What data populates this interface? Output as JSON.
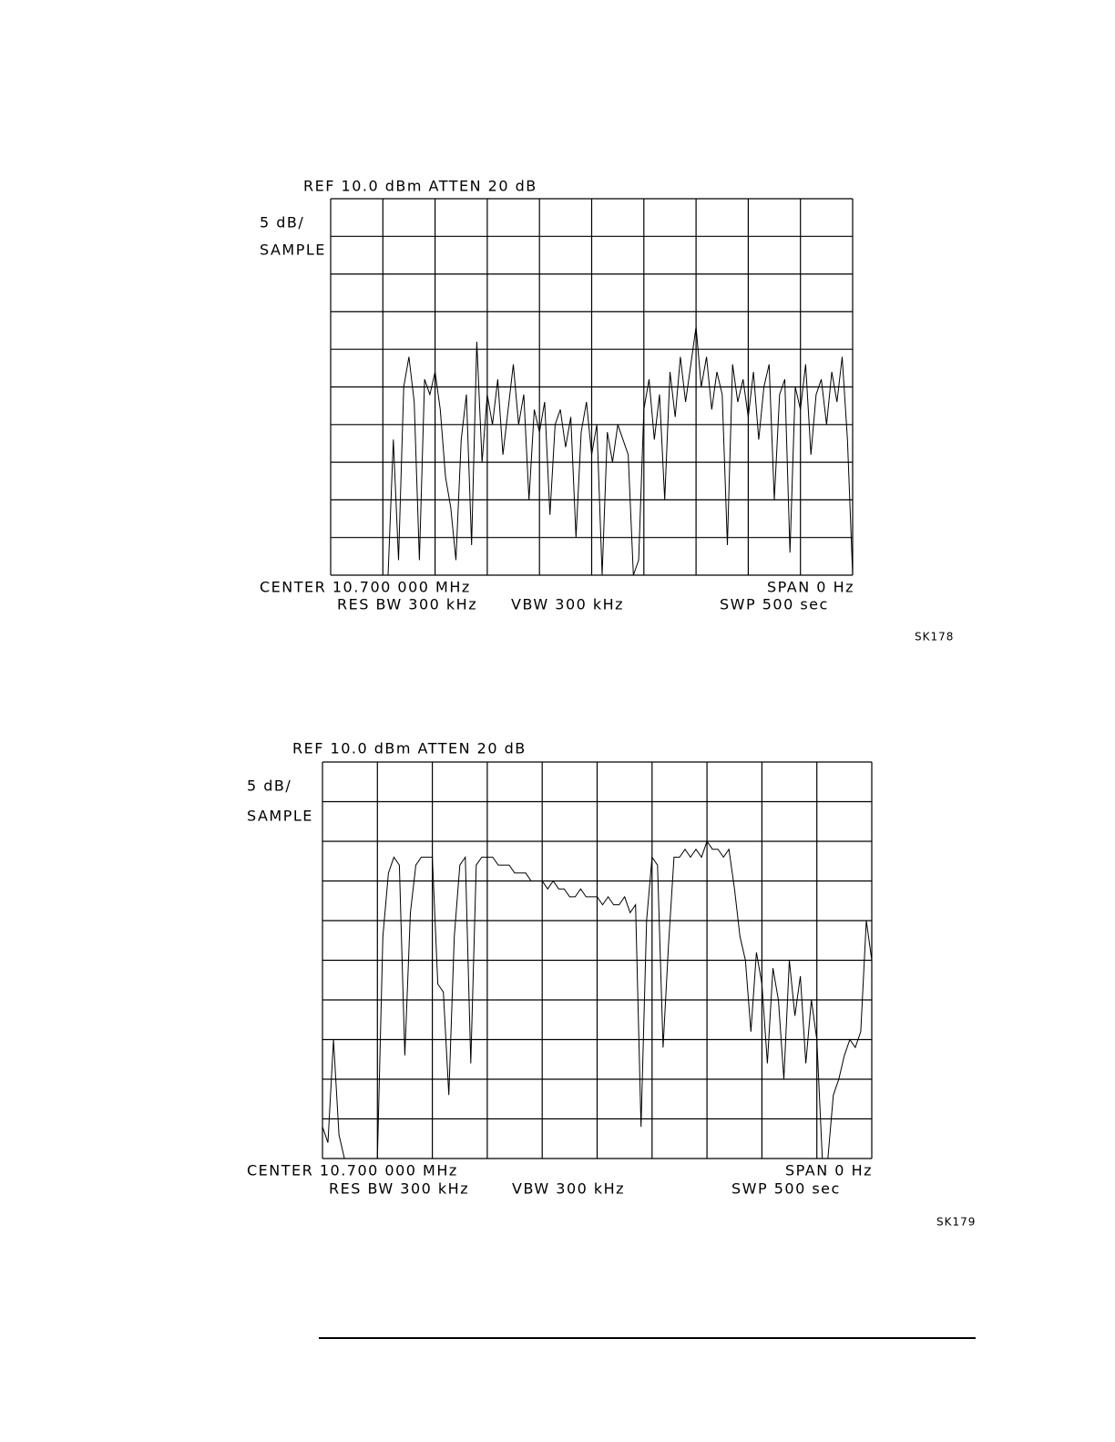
{
  "chart_data": [
    {
      "type": "line",
      "header": "REF  10.0 dBm   ATTEN 20 dB",
      "scale": "5 dB/",
      "mode": "SAMPLE",
      "center": "CENTER 10.700 000 MHz",
      "span": "SPAN 0 Hz",
      "res_bw": "RES BW 300 kHz",
      "vbw": "VBW 300 kHz",
      "sweep": "SWP 500 sec",
      "figure_id": "SK178",
      "xlim": [
        0,
        500
      ],
      "ylim": [
        -40,
        10
      ],
      "color": "#000000",
      "x": [
        0,
        5,
        10,
        15,
        20,
        25,
        30,
        35,
        40,
        45,
        50,
        55,
        60,
        65,
        70,
        75,
        80,
        85,
        90,
        95,
        100,
        105,
        110,
        115,
        120,
        125,
        130,
        135,
        140,
        145,
        150,
        155,
        160,
        165,
        170,
        175,
        180,
        185,
        190,
        195,
        200,
        205,
        210,
        215,
        220,
        225,
        230,
        235,
        240,
        245,
        250,
        255,
        260,
        265,
        270,
        275,
        280,
        285,
        290,
        295,
        300,
        305,
        310,
        315,
        320,
        325,
        330,
        335,
        340,
        345,
        350,
        355,
        360,
        365,
        370,
        375,
        380,
        385,
        390,
        395,
        400,
        405,
        410,
        415,
        420,
        425,
        430,
        435,
        440,
        445,
        450,
        455,
        460,
        465,
        470,
        475,
        480,
        485,
        490,
        495,
        500
      ],
      "values": [
        -40,
        -40,
        -40,
        -40,
        -40,
        -40,
        -40,
        -40,
        -40,
        -40,
        -40,
        -40,
        -22,
        -38,
        -15,
        -11,
        -17,
        -38,
        -14,
        -16,
        -13,
        -18,
        -27,
        -31,
        -38,
        -22,
        -16,
        -36,
        -9,
        -25,
        -16,
        -20,
        -14,
        -24,
        -18,
        -12,
        -20,
        -16,
        -30,
        -18,
        -21,
        -17,
        -32,
        -20,
        -18,
        -23,
        -19,
        -35,
        -21,
        -17,
        -24,
        -20,
        -40,
        -21,
        -25,
        -20,
        -22,
        -24,
        -40,
        -38,
        -18,
        -14,
        -22,
        -16,
        -30,
        -13,
        -19,
        -11,
        -17,
        -12,
        -7,
        -15,
        -11,
        -18,
        -13,
        -16,
        -36,
        -12,
        -17,
        -14,
        -19,
        -13,
        -22,
        -15,
        -12,
        -30,
        -16,
        -14,
        -37,
        -15,
        -18,
        -12,
        -24,
        -16,
        -14,
        -20,
        -13,
        -17,
        -11,
        -22,
        -40
      ]
    },
    {
      "type": "line",
      "header": "REF  10.0 dBm   ATTEN 20 dB",
      "scale": "5 dB/",
      "mode": "SAMPLE",
      "center": "CENTER 10.700 000 MHz",
      "span": "SPAN 0 Hz",
      "res_bw": "RES BW 300 kHz",
      "vbw": "VBW 300 kHz",
      "sweep": "SWP 500 sec",
      "figure_id": "SK179",
      "xlim": [
        0,
        500
      ],
      "ylim": [
        -40,
        10
      ],
      "color": "#000000",
      "x": [
        0,
        5,
        10,
        15,
        20,
        25,
        30,
        35,
        40,
        45,
        50,
        55,
        60,
        65,
        70,
        75,
        80,
        85,
        90,
        95,
        100,
        105,
        110,
        115,
        120,
        125,
        130,
        135,
        140,
        145,
        150,
        155,
        160,
        165,
        170,
        175,
        180,
        185,
        190,
        195,
        200,
        205,
        210,
        215,
        220,
        225,
        230,
        235,
        240,
        245,
        250,
        255,
        260,
        265,
        270,
        275,
        280,
        285,
        290,
        295,
        300,
        305,
        310,
        315,
        320,
        325,
        330,
        335,
        340,
        345,
        350,
        355,
        360,
        365,
        370,
        375,
        380,
        385,
        390,
        395,
        400,
        405,
        410,
        415,
        420,
        425,
        430,
        435,
        440,
        445,
        450,
        455,
        460,
        465,
        470,
        475,
        480,
        485,
        490,
        495,
        500
      ],
      "values": [
        -36,
        -38,
        -25,
        -37,
        -40,
        -40,
        -40,
        -40,
        -40,
        -40,
        -40,
        -12,
        -4,
        -2,
        -3,
        -27,
        -9,
        -3,
        -2,
        -2,
        -2,
        -18,
        -19,
        -32,
        -12,
        -3,
        -2,
        -28,
        -3,
        -2,
        -2,
        -2,
        -3,
        -3,
        -3,
        -4,
        -4,
        -4,
        -5,
        -5,
        -5,
        -6,
        -5,
        -6,
        -6,
        -7,
        -7,
        -6,
        -7,
        -7,
        -7,
        -8,
        -7,
        -8,
        -8,
        -7,
        -9,
        -8,
        -36,
        -10,
        -2,
        -3,
        -26,
        -13,
        -2,
        -2,
        -1,
        -2,
        -1,
        -2,
        0,
        -1,
        -1,
        -2,
        -1,
        -6,
        -12,
        -15,
        -24,
        -14,
        -18,
        -28,
        -16,
        -20,
        -30,
        -15,
        -22,
        -17,
        -28,
        -20,
        -25,
        -40,
        -40,
        -32,
        -30,
        -27,
        -25,
        -26,
        -24,
        -10,
        -15
      ]
    }
  ]
}
